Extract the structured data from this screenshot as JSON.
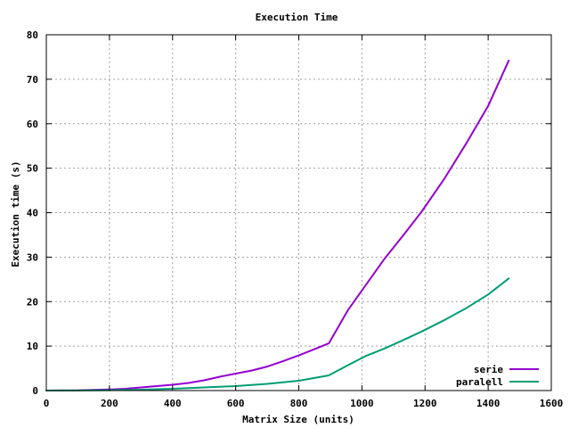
{
  "chart_data": {
    "type": "line",
    "title": "Execution Time",
    "xlabel": "Matrix Size (units)",
    "ylabel": "Execution time (s)",
    "xlim": [
      0,
      1600
    ],
    "ylim": [
      0,
      80
    ],
    "x_ticks": [
      0,
      200,
      400,
      600,
      800,
      1000,
      1200,
      1400,
      1600
    ],
    "y_ticks": [
      0,
      10,
      20,
      30,
      40,
      50,
      60,
      70,
      80
    ],
    "grid": true,
    "legend_position": "bottom-right",
    "series": [
      {
        "name": "serie",
        "color": "#9400d3",
        "points": [
          [
            0,
            0
          ],
          [
            100,
            0.05
          ],
          [
            200,
            0.25
          ],
          [
            250,
            0.4
          ],
          [
            300,
            0.7
          ],
          [
            350,
            1.0
          ],
          [
            400,
            1.3
          ],
          [
            450,
            1.7
          ],
          [
            500,
            2.3
          ],
          [
            550,
            3.1
          ],
          [
            600,
            3.8
          ],
          [
            650,
            4.5
          ],
          [
            700,
            5.4
          ],
          [
            750,
            6.6
          ],
          [
            800,
            7.9
          ],
          [
            850,
            9.3
          ],
          [
            895,
            10.6
          ],
          [
            955,
            18.0
          ],
          [
            1010,
            23.5
          ],
          [
            1070,
            29.5
          ],
          [
            1130,
            34.8
          ],
          [
            1190,
            40.3
          ],
          [
            1260,
            47.5
          ],
          [
            1330,
            55.5
          ],
          [
            1400,
            64.0
          ],
          [
            1465,
            74.2
          ]
        ]
      },
      {
        "name": "paralell",
        "color": "#009e73",
        "points": [
          [
            0,
            0
          ],
          [
            100,
            0.02
          ],
          [
            200,
            0.08
          ],
          [
            300,
            0.2
          ],
          [
            400,
            0.4
          ],
          [
            500,
            0.7
          ],
          [
            600,
            1.0
          ],
          [
            700,
            1.5
          ],
          [
            800,
            2.2
          ],
          [
            895,
            3.4
          ],
          [
            950,
            5.5
          ],
          [
            1010,
            7.7
          ],
          [
            1070,
            9.4
          ],
          [
            1130,
            11.3
          ],
          [
            1190,
            13.3
          ],
          [
            1260,
            15.8
          ],
          [
            1330,
            18.5
          ],
          [
            1400,
            21.6
          ],
          [
            1465,
            25.2
          ]
        ]
      }
    ]
  }
}
